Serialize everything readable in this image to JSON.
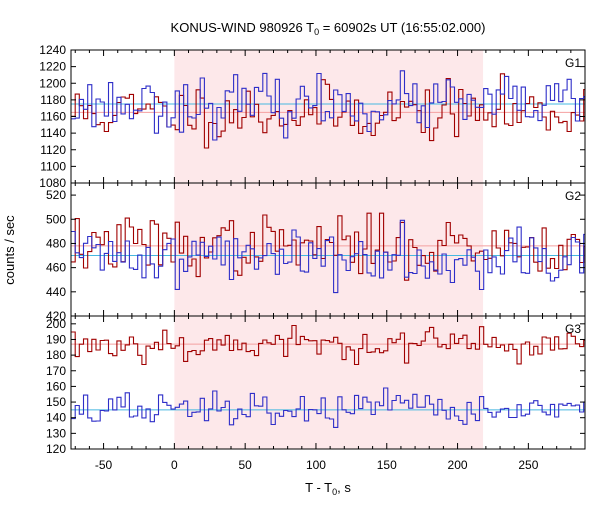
{
  "chart_data": {
    "type": "line",
    "title": "KONUS-WIND 980926 T",
    "title_sub": "0",
    "title_rest": " = 60902s UT (16:55:02.000)",
    "xlabel": "T - T",
    "xlabel_sub": "0",
    "xlabel_rest": ", s",
    "ylabel": "counts / sec",
    "xlim": [
      -73,
      290
    ],
    "x_ticks": [
      -50,
      0,
      50,
      100,
      150,
      200,
      250
    ],
    "shaded_interval": [
      0,
      218
    ],
    "colors": {
      "red": "#a00000",
      "blue": "#2e2ec8",
      "red_bg": "#f4a0a0",
      "blue_bg": "#46b8e0",
      "shade": "#fde8ea"
    },
    "panels": [
      {
        "label": "G1",
        "ylim": [
          1080,
          1240
        ],
        "y_ticks": [
          1080,
          1100,
          1120,
          1140,
          1160,
          1180,
          1200,
          1220,
          1240
        ],
        "series": [
          {
            "color": "red",
            "background": 1165,
            "seed": 11,
            "sigma": 17,
            "min": 1105,
            "max": 1222
          },
          {
            "color": "blue",
            "background": 1175,
            "seed": 23,
            "sigma": 16,
            "min": 1115,
            "max": 1222
          }
        ]
      },
      {
        "label": "G2",
        "ylim": [
          420,
          530
        ],
        "y_ticks": [
          420,
          440,
          460,
          480,
          500,
          520
        ],
        "series": [
          {
            "color": "red",
            "background": 478,
            "seed": 37,
            "sigma": 12,
            "min": 436,
            "max": 505
          },
          {
            "color": "blue",
            "background": 470,
            "seed": 41,
            "sigma": 12,
            "min": 435,
            "max": 505
          }
        ]
      },
      {
        "label": "G3",
        "ylim": [
          120,
          205
        ],
        "y_ticks": [
          120,
          130,
          140,
          150,
          160,
          170,
          180,
          190,
          200
        ],
        "series": [
          {
            "color": "red",
            "background": 187,
            "seed": 53,
            "sigma": 5.5,
            "min": 174,
            "max": 199
          },
          {
            "color": "blue",
            "background": 145,
            "seed": 67,
            "sigma": 5.5,
            "min": 131,
            "max": 160
          }
        ]
      }
    ]
  }
}
